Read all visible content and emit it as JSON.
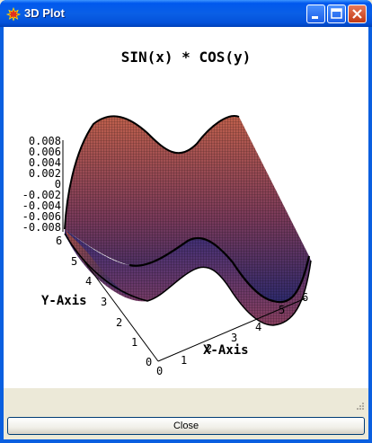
{
  "window": {
    "title": "3D Plot",
    "icon": "maple-leaf-icon",
    "controls": [
      "minimize-icon",
      "maximize-icon",
      "close-icon"
    ]
  },
  "plot": {
    "title": "SIN(x) * COS(y)",
    "x_axis_label": "X-Axis",
    "y_axis_label": "Y-Axis",
    "x_ticks": [
      "0",
      "1",
      "2",
      "3",
      "4",
      "5",
      "6"
    ],
    "y_ticks": [
      "0",
      "1",
      "2",
      "3",
      "4",
      "5",
      "6"
    ],
    "z_ticks": [
      "0.008",
      "0.006",
      "0.004",
      "0.002",
      "0",
      "-0.002",
      "-0.004",
      "-0.006",
      "-0.008"
    ],
    "colors": {
      "high": "#b85a48",
      "low": "#2e2a6e",
      "mesh": "#000000"
    }
  },
  "footer": {
    "close_label": "Close"
  }
}
